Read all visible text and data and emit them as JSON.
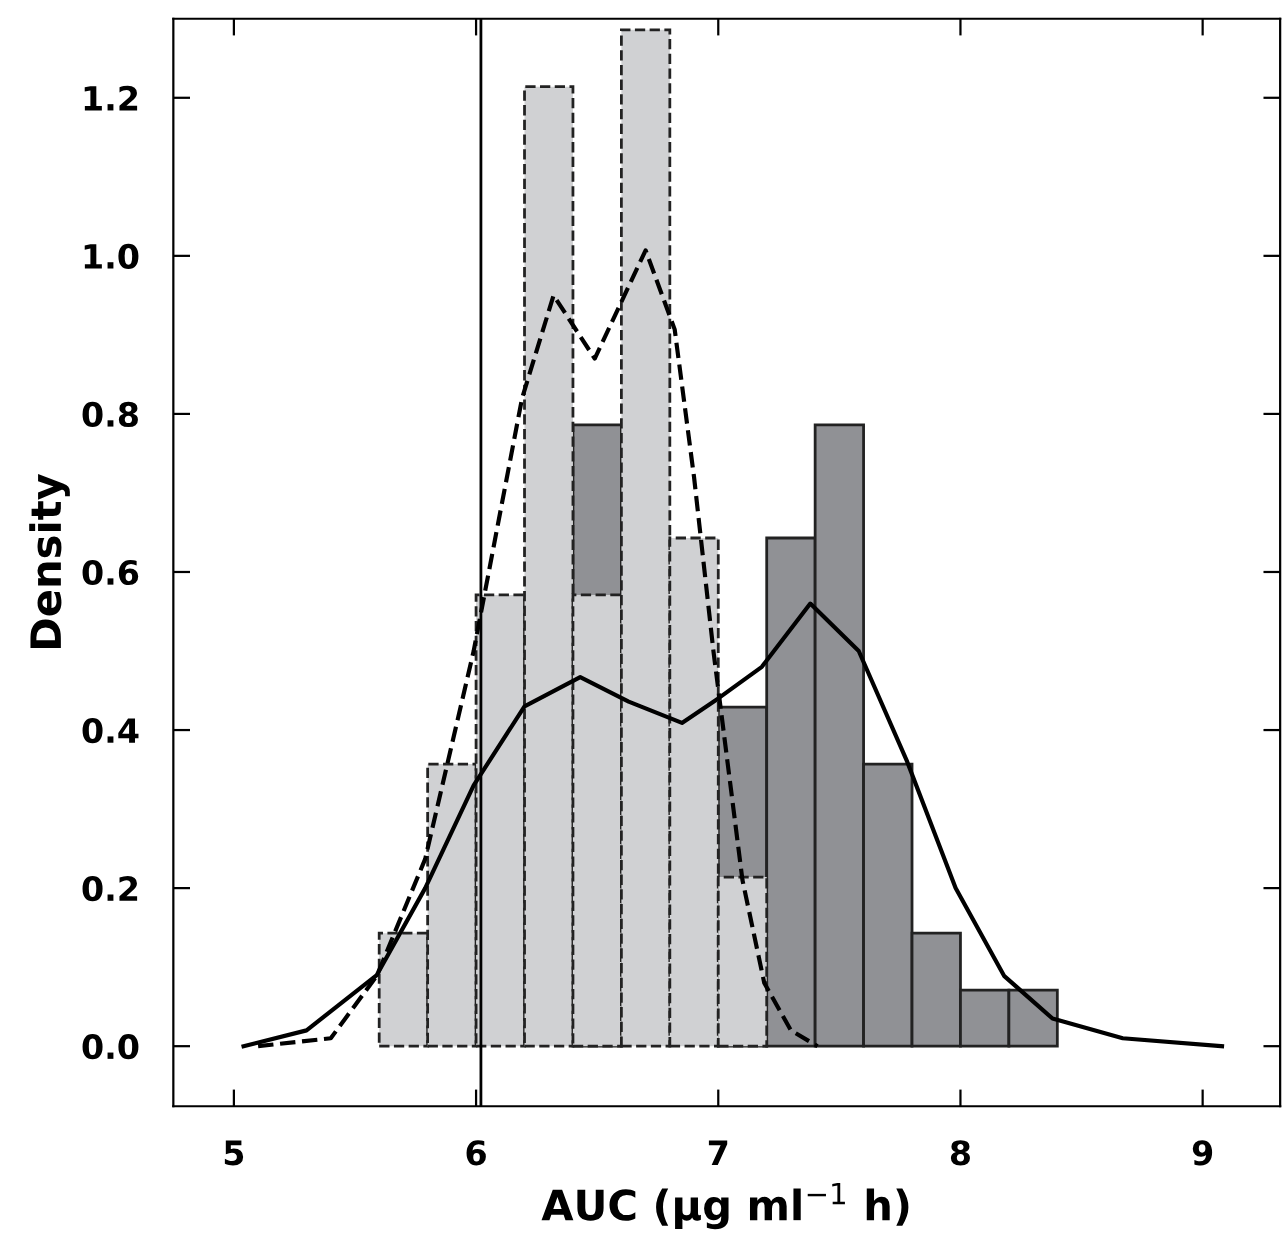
{
  "chart_data": {
    "type": "histogram",
    "xlabel": "AUC (μg ml$^{−1}$ h)",
    "ylabel": "Density",
    "xlim": [
      4.75,
      9.32
    ],
    "ylim": [
      -0.076,
      1.3
    ],
    "xticks": [
      5,
      6,
      7,
      8,
      9
    ],
    "yticks": [
      {
        "value": 0,
        "label": "0.0"
      },
      {
        "value": 0.2,
        "label": "0.2"
      },
      {
        "value": 0.4,
        "label": "0.4"
      },
      {
        "value": 0.6,
        "label": "0.6"
      },
      {
        "value": 0.8,
        "label": "0.8"
      },
      {
        "value": 1.0,
        "label": "1.0"
      },
      {
        "value": 1.2,
        "label": "1.2"
      }
    ],
    "ref_lines": [
      {
        "axis": "x",
        "value": 6.02,
        "color": "#000000",
        "line_style": "solid"
      }
    ],
    "series": [
      {
        "color": "#909195",
        "line_style": "solid",
        "bins": [
          6.4,
          6.6,
          6.8,
          7.0,
          7.2,
          7.4,
          7.6,
          7.8,
          8.0,
          8.2,
          8.4
        ],
        "values": [
          0.786,
          null,
          null,
          0.429,
          0.643,
          0.786,
          0.357,
          0.143,
          0.071,
          0.071
        ]
      },
      {
        "color": "#d0d1d3",
        "line_style": "dashed",
        "bins": [
          5.6,
          5.8,
          6.0,
          6.2,
          6.4,
          6.6,
          6.8,
          7.0,
          7.2
        ],
        "values": [
          0.143,
          0.357,
          0.571,
          1.214,
          0.571,
          1.286,
          0.643,
          0.214
        ]
      },
      {
        "type": "line",
        "color": "#000000",
        "line_style": "solid",
        "x": [
          5.04,
          5.3,
          5.59,
          5.79,
          5.99,
          6.2,
          6.43,
          6.63,
          6.85,
          7.0,
          7.18,
          7.38,
          7.58,
          7.78,
          7.98,
          8.18,
          8.38,
          8.67,
          9.08
        ],
        "values": [
          0.0,
          0.02,
          0.09,
          0.2,
          0.33,
          0.43,
          0.467,
          0.436,
          0.409,
          0.44,
          0.48,
          0.56,
          0.5,
          0.36,
          0.2,
          0.089,
          0.035,
          0.01,
          0.0
        ]
      },
      {
        "type": "line",
        "color": "#000000",
        "line_style": "dashed",
        "x": [
          5.1,
          5.4,
          5.59,
          5.79,
          5.99,
          6.19,
          6.32,
          6.49,
          6.7,
          6.82,
          6.9,
          6.98,
          7.1,
          7.19,
          7.3,
          7.41
        ],
        "values": [
          0.0,
          0.01,
          0.089,
          0.237,
          0.5,
          0.82,
          0.95,
          0.87,
          1.007,
          0.907,
          0.72,
          0.5,
          0.21,
          0.08,
          0.02,
          0.0
        ]
      }
    ]
  }
}
